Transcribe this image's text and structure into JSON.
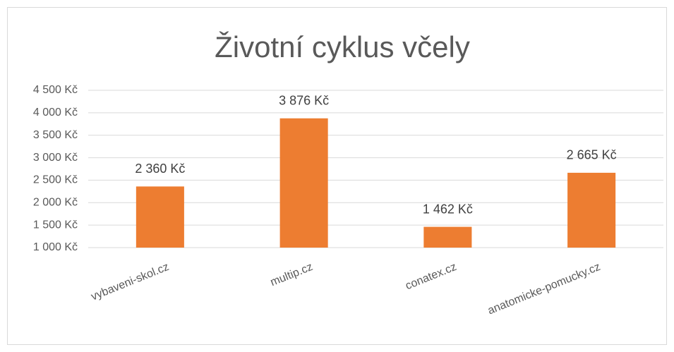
{
  "chart_data": {
    "type": "bar",
    "title": "Životní cyklus včely",
    "categories": [
      "vybaveni-skol.cz",
      "multip.cz",
      "conatex.cz",
      "anatomicke-pomucky.cz"
    ],
    "values": [
      2360,
      3876,
      1462,
      2665
    ],
    "value_labels": [
      "2 360 Kč",
      "3 876 Kč",
      "1 462 Kč",
      "2 665 Kč"
    ],
    "color": "#ed7d31",
    "ylim": [
      1000,
      4500
    ],
    "yticks": [
      {
        "value": 1000,
        "label": "1 000 Kč"
      },
      {
        "value": 1500,
        "label": "1 500 Kč"
      },
      {
        "value": 2000,
        "label": "2 000 Kč"
      },
      {
        "value": 2500,
        "label": "2 500 Kč"
      },
      {
        "value": 3000,
        "label": "3 000 Kč"
      },
      {
        "value": 3500,
        "label": "3 500 Kč"
      },
      {
        "value": 4000,
        "label": "4 000 Kč"
      },
      {
        "value": 4500,
        "label": "4 500 Kč"
      }
    ],
    "grid": true
  }
}
